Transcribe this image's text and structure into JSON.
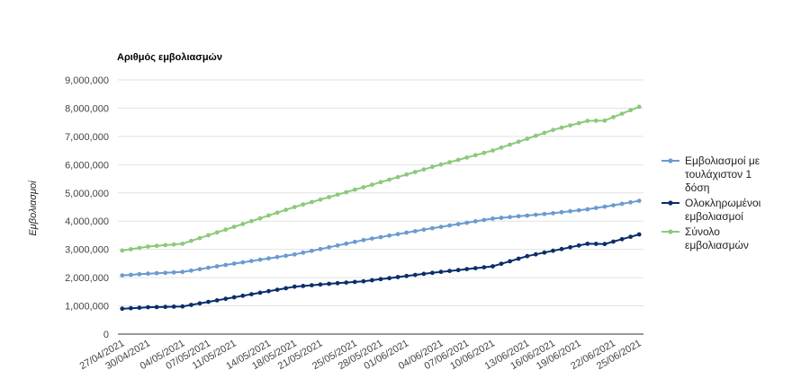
{
  "chart_data": {
    "type": "line",
    "title": "Αριθμός εμβολιασμών",
    "xlabel": "",
    "ylabel": "Εμβολιασμοί",
    "ylim": [
      0,
      9000000
    ],
    "yticks": [
      0,
      1000000,
      2000000,
      3000000,
      4000000,
      5000000,
      6000000,
      7000000,
      8000000,
      9000000
    ],
    "ytick_labels": [
      "0",
      "1,000,000",
      "2,000,000",
      "3,000,000",
      "4,000,000",
      "5,000,000",
      "6,000,000",
      "7,000,000",
      "8,000,000",
      "9,000,000"
    ],
    "x_tick_labels": [
      "27/04/2021",
      "30/04/2021",
      "04/05/2021",
      "07/05/2021",
      "11/05/2021",
      "14/05/2021",
      "18/05/2021",
      "21/05/2021",
      "25/05/2021",
      "28/05/2021",
      "01/06/2021",
      "04/06/2021",
      "07/06/2021",
      "10/06/2021",
      "13/06/2021",
      "16/06/2021",
      "19/06/2021",
      "22/06/2021",
      "25/06/2021"
    ],
    "point_count": 61,
    "grid": true,
    "legend_position": "right",
    "series": [
      {
        "name": "Εμβολιασμοί με τουλάχιστον 1 δόση",
        "legend_lines": [
          "Εμβολιασμοί με",
          "τουλάχιστον 1",
          "δόση"
        ],
        "color": "#6a9bd1",
        "keypoints": [
          [
            0,
            2080000
          ],
          [
            3,
            2140000
          ],
          [
            7,
            2200000
          ],
          [
            12,
            2450000
          ],
          [
            20,
            2820000
          ],
          [
            28,
            3330000
          ],
          [
            36,
            3750000
          ],
          [
            43,
            4090000
          ],
          [
            50,
            4280000
          ],
          [
            54,
            4420000
          ],
          [
            57,
            4560000
          ],
          [
            60,
            4720000
          ]
        ]
      },
      {
        "name": "Ολοκληρωμένοι εμβολιασμοί",
        "legend_lines": [
          "Ολοκληρωμένοι",
          "εμβολιασμοί"
        ],
        "color": "#0b2e6b",
        "keypoints": [
          [
            0,
            900000
          ],
          [
            3,
            950000
          ],
          [
            7,
            980000
          ],
          [
            12,
            1250000
          ],
          [
            20,
            1680000
          ],
          [
            24,
            1780000
          ],
          [
            28,
            1870000
          ],
          [
            36,
            2170000
          ],
          [
            43,
            2400000
          ],
          [
            47,
            2760000
          ],
          [
            50,
            2950000
          ],
          [
            54,
            3200000
          ],
          [
            56,
            3190000
          ],
          [
            60,
            3530000
          ]
        ]
      },
      {
        "name": "Σύνολο εμβολιασμών",
        "legend_lines": [
          "Σύνολο",
          "εμβολιασμών"
        ],
        "color": "#8cc97a",
        "keypoints": [
          [
            0,
            2960000
          ],
          [
            3,
            3100000
          ],
          [
            7,
            3200000
          ],
          [
            12,
            3700000
          ],
          [
            20,
            4500000
          ],
          [
            28,
            5200000
          ],
          [
            36,
            5920000
          ],
          [
            43,
            6500000
          ],
          [
            50,
            7230000
          ],
          [
            54,
            7550000
          ],
          [
            56,
            7560000
          ],
          [
            60,
            8050000
          ]
        ]
      }
    ]
  }
}
